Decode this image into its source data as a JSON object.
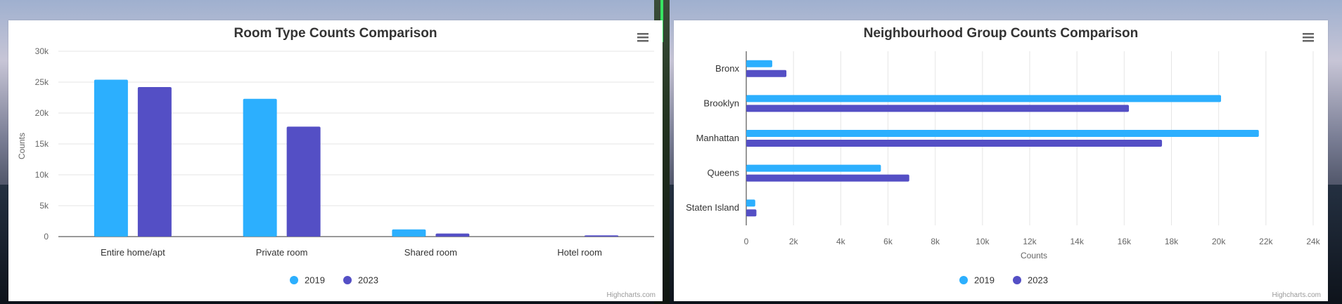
{
  "colors": {
    "series_2019": "#2caffe",
    "series_2023": "#544fc5",
    "grid": "#e6e6e6",
    "axis": "#333333"
  },
  "icons": {
    "menu": "hamburger-menu-icon"
  },
  "credits": "Highcharts.com",
  "chart_data": [
    {
      "type": "bar",
      "orientation": "vertical",
      "title": "Room Type Counts Comparison",
      "xlabel": "",
      "ylabel": "Counts",
      "categories": [
        "Entire home/apt",
        "Private room",
        "Shared room",
        "Hotel room"
      ],
      "series": [
        {
          "name": "2019",
          "values": [
            25400,
            22300,
            1160,
            0
          ]
        },
        {
          "name": "2023",
          "values": [
            24200,
            17800,
            500,
            200
          ]
        }
      ],
      "ylim": [
        0,
        30000
      ],
      "yticks": [
        "0",
        "5k",
        "10k",
        "15k",
        "20k",
        "25k",
        "30k"
      ],
      "grid": true,
      "legend": "bottom-center"
    },
    {
      "type": "bar",
      "orientation": "horizontal",
      "title": "Neighbourhood Group Counts Comparison",
      "xlabel": "Counts",
      "ylabel": "",
      "categories": [
        "Bronx",
        "Brooklyn",
        "Manhattan",
        "Queens",
        "Staten Island"
      ],
      "series": [
        {
          "name": "2019",
          "values": [
            1100,
            20100,
            21700,
            5700,
            380
          ]
        },
        {
          "name": "2023",
          "values": [
            1700,
            16200,
            17600,
            6900,
            430
          ]
        }
      ],
      "xlim": [
        0,
        24000
      ],
      "xticks": [
        "0",
        "2k",
        "4k",
        "6k",
        "8k",
        "10k",
        "12k",
        "14k",
        "16k",
        "18k",
        "20k",
        "22k",
        "24k"
      ],
      "grid": true,
      "legend": "bottom-center"
    }
  ]
}
